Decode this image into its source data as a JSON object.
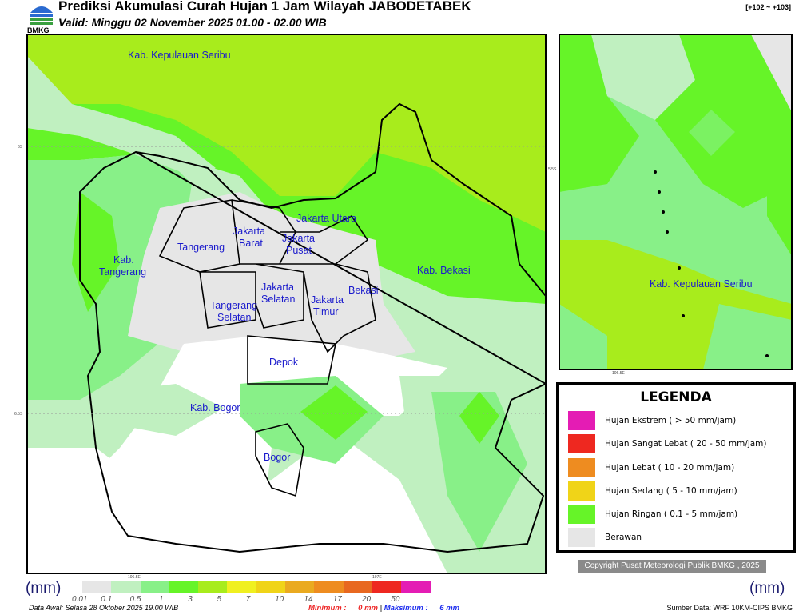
{
  "header": {
    "title": "Prediksi Akumulasi Curah Hujan 1 Jam Wilayah JABODETABEK",
    "valid": "Valid: Minggu 02 November 2025 01.00 - 02.00 WIB",
    "code": "[+102 ~ +103]",
    "logo_text": "BMKG"
  },
  "main_map": {
    "ticks": {
      "lat1": "6S",
      "lat2": "6.5S",
      "lon1": "106.5E",
      "lon2": "107E"
    },
    "regions": {
      "kep_seribu": "Kab. Kepulauan Seribu",
      "jakut": "Jakarta Utara",
      "jakbar": [
        "Jakarta",
        "Barat"
      ],
      "jakpus": [
        "Jakarta",
        "Pusat"
      ],
      "tangerang": "Tangerang",
      "kab_tangerang": [
        "Kab.",
        "Tangerang"
      ],
      "kab_bekasi": "Kab. Bekasi",
      "jaksel": [
        "Jakarta",
        "Selatan"
      ],
      "bekasi": "Bekasi",
      "jaktim": [
        "Jakarta",
        "Timur"
      ],
      "tangsel": [
        "Tangerang",
        "Selatan"
      ],
      "depok": "Depok",
      "kab_bogor": "Kab. Bogor",
      "bogor": "Bogor"
    }
  },
  "inset_map": {
    "label": "Kab. Kepulauan Seribu",
    "ticks": {
      "lat": "5.5S",
      "lon": "106.5E"
    }
  },
  "legend": {
    "title": "LEGENDA",
    "items": [
      {
        "label": "Hujan Ekstrem ( > 50 mm/jam)",
        "color": "#e41cb4"
      },
      {
        "label": "Hujan Sangat Lebat ( 20 - 50 mm/jam)",
        "color": "#ee2820"
      },
      {
        "label": "Hujan Lebat ( 10 - 20 mm/jam)",
        "color": "#ee8c20"
      },
      {
        "label": "Hujan Sedang ( 5 - 10 mm/jam)",
        "color": "#f0d418"
      },
      {
        "label": "Hujan Ringan ( 0,1 - 5 mm/jam)",
        "color": "#66f428"
      },
      {
        "label": "Berawan",
        "color": "#e6e6e6"
      }
    ]
  },
  "copyright": "Copyright Pusat Meteorologi Publik BMKG , 2025",
  "colorbar": {
    "unit": "(mm)",
    "colors": [
      "#e6e6e6",
      "#c0f0c0",
      "#88f088",
      "#66f428",
      "#a8ec1c",
      "#f0f020",
      "#f0d418",
      "#eaaa20",
      "#ee8c20",
      "#e86820",
      "#ee2820",
      "#e41cb4"
    ],
    "labels": [
      "0.01",
      "0.1",
      "0.5",
      "1",
      "3",
      "5",
      "7",
      "10",
      "14",
      "17",
      "20",
      "50"
    ]
  },
  "footer": {
    "data_awal": "Data Awal: Selasa 28 Oktober 2025 19.00 WIB",
    "min_label": "Minimum :",
    "min_value": "0 mm",
    "sep": "|",
    "max_label": "Maksimum :",
    "max_value": "6 mm",
    "source": "Sumber Data: WRF 10KM-CIPS BMKG"
  }
}
